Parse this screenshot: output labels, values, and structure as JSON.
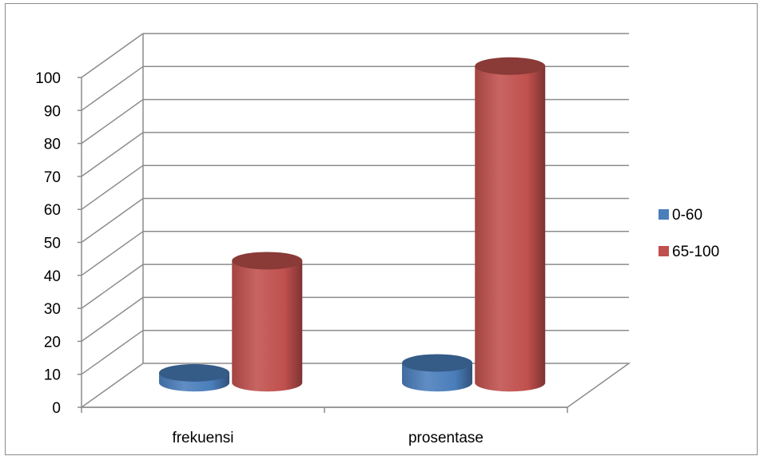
{
  "chart_data": {
    "type": "bar",
    "style": "3d-cylinder",
    "categories": [
      "frekuensi",
      "prosentase"
    ],
    "series": [
      {
        "name": "0-60",
        "values": [
          3,
          6
        ],
        "color": "#4a7ebb"
      },
      {
        "name": "65-100",
        "values": [
          37,
          96
        ],
        "color": "#c0504d"
      }
    ],
    "ylim": [
      0,
      100
    ],
    "yticks": [
      "0",
      "10",
      "20",
      "30",
      "40",
      "50",
      "60",
      "70",
      "80",
      "90",
      "100"
    ],
    "grid": true,
    "legend_position": "right"
  }
}
